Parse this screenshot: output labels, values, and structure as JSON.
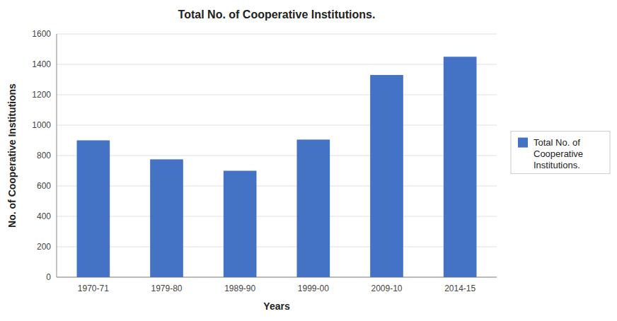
{
  "chart_data": {
    "type": "bar",
    "title": "Total No. of Cooperative Institutions.",
    "xlabel": "Years",
    "ylabel": "No. of Cooperative Institutions",
    "categories": [
      "1970-71",
      "1979-80",
      "1989-90",
      "1999-00",
      "2009-10",
      "2014-15"
    ],
    "series": [
      {
        "name": "Total No. of\nCooperative\nInstitutions.",
        "color": "#4472C4",
        "values": [
          900,
          775,
          700,
          905,
          1330,
          1450
        ]
      }
    ],
    "ylim": [
      0,
      1600
    ],
    "yticks": [
      0,
      200,
      400,
      600,
      800,
      1000,
      1200,
      1400,
      1600
    ],
    "grid": true,
    "legend": "right"
  }
}
